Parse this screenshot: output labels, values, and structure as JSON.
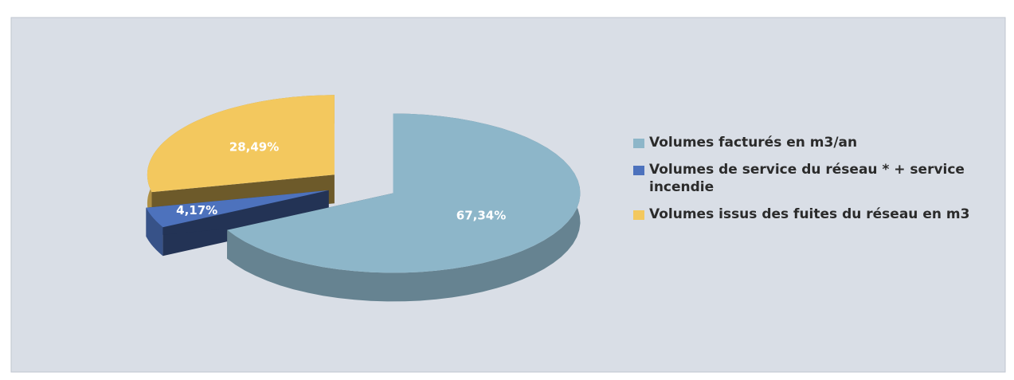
{
  "chart_data": {
    "type": "pie3d",
    "categories": [
      "Volumes facturés en m3/an",
      "Volumes de service du réseau * + service incendie",
      "Volumes issus des fuites du réseau en m3"
    ],
    "values": [
      67.34,
      4.17,
      28.49
    ],
    "value_labels": [
      "67,34%",
      "4,17%",
      "28,49%"
    ],
    "colors": [
      "#8db6c9",
      "#4d72bd",
      "#f3c85e"
    ],
    "legend": "right"
  }
}
